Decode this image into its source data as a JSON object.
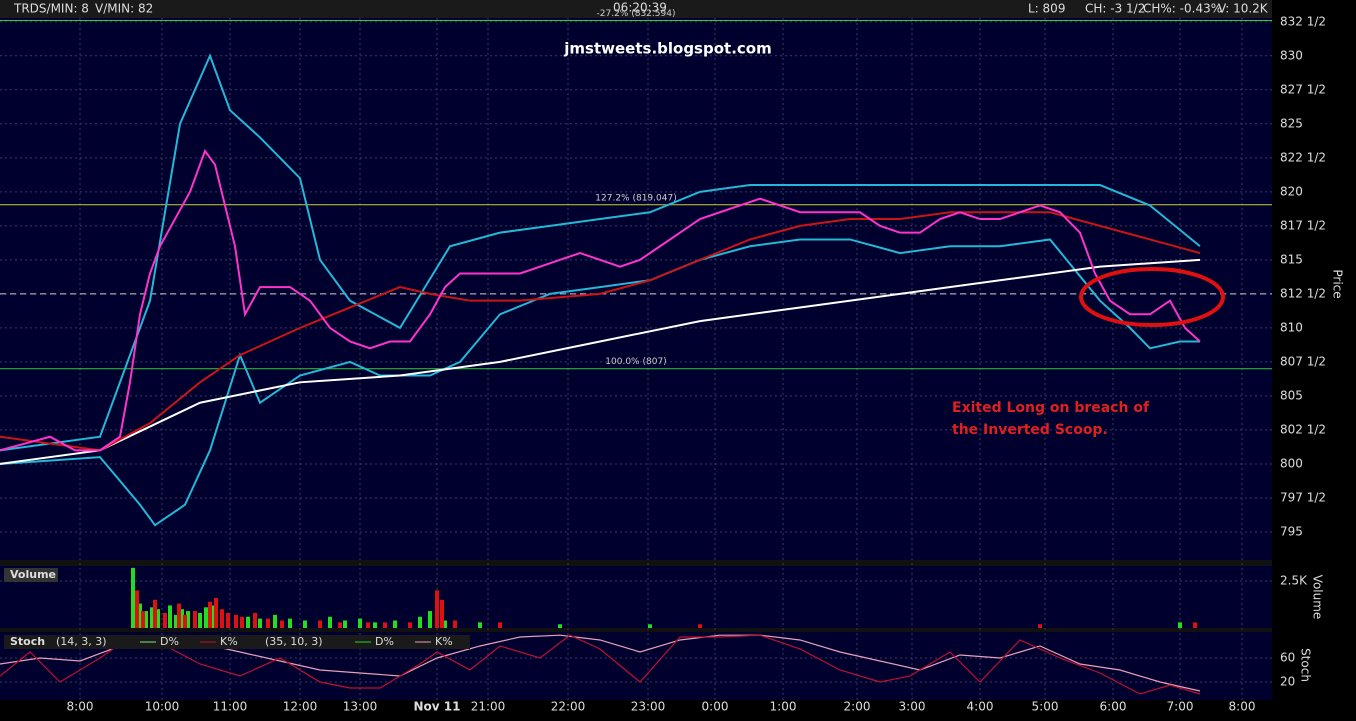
{
  "header": {
    "trades": "TRDS/MIN: 8",
    "vol_rate": "V/MIN: 82",
    "clock": "06:20:39",
    "last": "L: 809",
    "change": "CH: -3 1/2",
    "change_pct": "CH%: -0.43%",
    "volume": "V: 10.2K"
  },
  "chart_data": [
    {
      "type": "line",
      "watermark": "jmstweets.blogspot.com",
      "annotations": [
        "Exited Long on breach of",
        "the Inverted Scoop."
      ],
      "y_label": "Price",
      "xlim": [
        0,
        1272
      ],
      "ylim": [
        792.94,
        834.1
      ],
      "xticks": [
        {
          "value": 80,
          "label": "8:00"
        },
        {
          "value": 162,
          "label": "10:00"
        },
        {
          "value": 230,
          "label": "11:00"
        },
        {
          "value": 300,
          "label": "12:00"
        },
        {
          "value": 360,
          "label": "13:00"
        },
        {
          "value": 437,
          "label": "Nov 11"
        },
        {
          "value": 488,
          "label": "21:00"
        },
        {
          "value": 568,
          "label": "22:00"
        },
        {
          "value": 648,
          "label": "23:00"
        },
        {
          "value": 715,
          "label": "0:00"
        },
        {
          "value": 783,
          "label": "1:00"
        },
        {
          "value": 857,
          "label": "2:00"
        },
        {
          "value": 912,
          "label": "3:00"
        },
        {
          "value": 980,
          "label": "4:00"
        },
        {
          "value": 1045,
          "label": "5:00"
        },
        {
          "value": 1113,
          "label": "6:00"
        },
        {
          "value": 1180,
          "label": "7:00"
        },
        {
          "value": 1242,
          "label": "8:00"
        }
      ],
      "yticks": [
        {
          "value": 832.5,
          "label": "832 1/2"
        },
        830,
        {
          "value": 827.5,
          "label": "827 1/2"
        },
        825,
        {
          "value": 822.5,
          "label": "822 1/2"
        },
        820,
        {
          "value": 817.5,
          "label": "817 1/2"
        },
        815,
        {
          "value": 812.5,
          "label": "812 1/2"
        },
        810,
        {
          "value": 807.5,
          "label": "807 1/2"
        },
        805,
        {
          "value": 802.5,
          "label": "802 1/2"
        },
        800,
        {
          "value": 797.5,
          "label": "797 1/2"
        },
        795
      ],
      "grid": true,
      "levels": [
        {
          "value": 832.594,
          "label": "-27.2% (832.594)",
          "color": "#33cc33"
        },
        {
          "value": 819.047,
          "label": "127.2% (819.047)",
          "color": "#cccc33"
        },
        {
          "value": 807,
          "label": "100.0% (807)",
          "color": "#33cc33"
        }
      ],
      "current_price": 812.5,
      "series": [
        {
          "color": "#22b8d8",
          "x": [
            0,
            100,
            150,
            180,
            210,
            230,
            260,
            300,
            320,
            350,
            400,
            450,
            500,
            550,
            600,
            650,
            700,
            750,
            800,
            850,
            900,
            950,
            1000,
            1050,
            1100,
            1150,
            1200
          ],
          "values": [
            801,
            802,
            812,
            825,
            830,
            826,
            824,
            821,
            815,
            812,
            810,
            816,
            817,
            817.5,
            818,
            818.5,
            820,
            820.5,
            820.5,
            820.5,
            820.5,
            820.5,
            820.5,
            820.5,
            820.5,
            819,
            816
          ]
        },
        {
          "color": "#22b8d8",
          "x": [
            0,
            100,
            140,
            155,
            185,
            210,
            240,
            260,
            300,
            350,
            380,
            430,
            460,
            500,
            550,
            600,
            650,
            700,
            750,
            800,
            850,
            900,
            950,
            1000,
            1050,
            1100,
            1130,
            1150,
            1180,
            1200
          ],
          "values": [
            800,
            800.5,
            797,
            795.5,
            797,
            801,
            808,
            804.5,
            806.5,
            807.5,
            806.5,
            806.5,
            807.5,
            811,
            812.5,
            813,
            813.5,
            815,
            816,
            816.5,
            816.5,
            815.5,
            816,
            816,
            816.5,
            812,
            810,
            808.5,
            809,
            809
          ]
        },
        {
          "color": "#ffffff",
          "x": [
            0,
            100,
            200,
            300,
            400,
            500,
            600,
            700,
            800,
            900,
            1000,
            1100,
            1200
          ],
          "values": [
            800,
            801,
            804.5,
            806,
            806.5,
            807.5,
            809,
            810.5,
            811.5,
            812.5,
            813.5,
            814.5,
            815
          ]
        },
        {
          "color": "#cc1414",
          "x": [
            0,
            100,
            150,
            200,
            240,
            300,
            350,
            400,
            430,
            470,
            520,
            600,
            650,
            700,
            750,
            800,
            850,
            900,
            950,
            1000,
            1050,
            1100,
            1150,
            1200
          ],
          "values": [
            802,
            801,
            803,
            806,
            808,
            810,
            811.5,
            813,
            812.5,
            812,
            812,
            812.5,
            813.5,
            815,
            816.5,
            817.5,
            818,
            818,
            818.5,
            818.5,
            818.5,
            817.5,
            816.5,
            815.5
          ]
        },
        {
          "color": "#ff33cc",
          "x": [
            0,
            25,
            50,
            75,
            100,
            120,
            130,
            140,
            150,
            160,
            175,
            190,
            205,
            215,
            225,
            235,
            245,
            260,
            275,
            290,
            310,
            330,
            350,
            370,
            390,
            410,
            430,
            445,
            460,
            480,
            500,
            520,
            540,
            560,
            580,
            600,
            620,
            640,
            660,
            680,
            700,
            720,
            740,
            760,
            780,
            800,
            820,
            840,
            860,
            880,
            900,
            920,
            940,
            960,
            980,
            1000,
            1020,
            1040,
            1060,
            1080,
            1095,
            1110,
            1130,
            1150,
            1170,
            1185,
            1200
          ],
          "values": [
            801,
            801.5,
            802,
            801,
            801,
            802,
            806,
            811,
            814,
            816,
            818,
            820,
            823,
            822,
            819,
            816,
            811,
            813,
            813,
            813,
            812,
            810,
            809,
            808.5,
            809,
            809,
            811,
            813,
            814,
            814,
            814,
            814,
            814.5,
            815,
            815.5,
            815,
            814.5,
            815,
            816,
            817,
            818,
            818.5,
            819,
            819.5,
            819,
            818.5,
            818.5,
            818.5,
            818.5,
            817.5,
            817,
            817,
            818,
            818.5,
            818,
            818,
            818.5,
            819,
            818.5,
            817,
            814,
            812,
            811,
            811,
            812,
            810,
            809
          ]
        }
      ]
    },
    {
      "type": "bar",
      "title": "Volume",
      "y_label": "Volume",
      "xlim": [
        0,
        1272
      ],
      "ylim": [
        0,
        3300
      ],
      "yticks": [
        {
          "value": 2500,
          "label": "2.5K"
        }
      ],
      "series": [
        {
          "color": "#22dd22",
          "x": [
            133,
            140,
            146,
            152,
            158,
            170,
            176,
            182,
            188,
            200,
            206,
            212,
            248,
            260,
            275,
            290,
            305,
            330,
            345,
            360,
            375,
            395,
            420,
            430,
            445,
            480,
            560,
            650,
            1180
          ],
          "values": [
            3200,
            1300,
            900,
            1100,
            1000,
            1200,
            700,
            1000,
            900,
            800,
            1100,
            1200,
            600,
            500,
            700,
            500,
            400,
            600,
            400,
            500,
            300,
            400,
            600,
            900,
            400,
            300,
            200,
            200,
            300
          ]
        },
        {
          "color": "#dd1111",
          "x": [
            137,
            143,
            155,
            165,
            179,
            185,
            195,
            210,
            216,
            222,
            228,
            236,
            242,
            255,
            268,
            282,
            320,
            340,
            368,
            385,
            410,
            437,
            442,
            455,
            500,
            700,
            1040,
            1195
          ],
          "values": [
            2000,
            900,
            1500,
            800,
            1300,
            700,
            900,
            1400,
            1600,
            1000,
            800,
            700,
            600,
            800,
            500,
            400,
            400,
            300,
            300,
            300,
            300,
            2000,
            1500,
            400,
            300,
            200,
            200,
            300
          ]
        }
      ]
    },
    {
      "type": "line",
      "title": "Stoch",
      "params_1": "(14, 3, 3)",
      "params_2": "(35, 10, 3)",
      "legend": [
        "D%",
        "K%",
        "D%",
        "K%"
      ],
      "y_label": "Stoch",
      "xlim": [
        0,
        1272
      ],
      "ylim": [
        -10,
        103.3
      ],
      "yticks": [
        20,
        60
      ],
      "series": [
        {
          "color": "#e8a0b8",
          "x": [
            0,
            40,
            80,
            120,
            160,
            200,
            240,
            280,
            320,
            360,
            400,
            437,
            480,
            520,
            560,
            600,
            640,
            680,
            720,
            760,
            800,
            840,
            880,
            920,
            960,
            1000,
            1040,
            1080,
            1120,
            1160,
            1200
          ],
          "values": [
            50,
            60,
            55,
            80,
            90,
            85,
            70,
            55,
            40,
            35,
            30,
            60,
            80,
            95,
            98,
            90,
            70,
            90,
            98,
            98,
            90,
            70,
            55,
            40,
            65,
            60,
            80,
            50,
            40,
            20,
            5
          ]
        },
        {
          "color": "#c01030",
          "x": [
            0,
            30,
            60,
            100,
            130,
            160,
            200,
            240,
            280,
            320,
            350,
            380,
            420,
            437,
            470,
            500,
            540,
            570,
            600,
            640,
            680,
            720,
            760,
            800,
            840,
            880,
            910,
            950,
            980,
            1020,
            1060,
            1100,
            1140,
            1170,
            1200
          ],
          "values": [
            30,
            70,
            20,
            60,
            95,
            85,
            50,
            30,
            60,
            20,
            10,
            10,
            50,
            70,
            40,
            80,
            60,
            98,
            75,
            20,
            95,
            95,
            98,
            75,
            40,
            20,
            30,
            70,
            20,
            90,
            60,
            35,
            0,
            15,
            0
          ]
        }
      ]
    }
  ]
}
